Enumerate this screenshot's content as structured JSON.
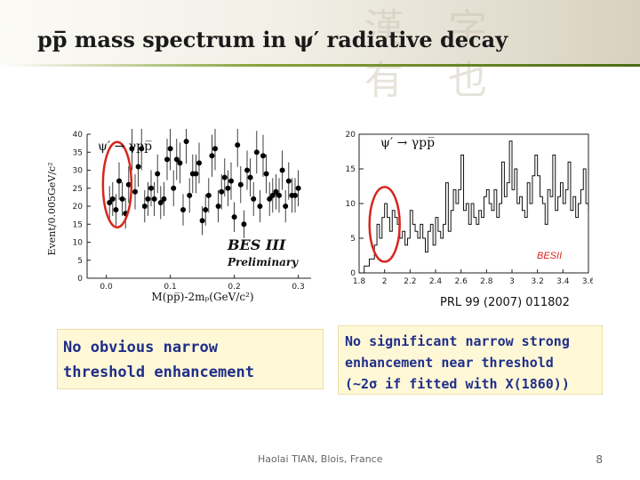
{
  "title": "pp̅ mass spectrum in ψ′ radiative decay",
  "left_plot": {
    "process": "ψ′ → γpp̅",
    "y_label": "Event/0.005GeV/c²",
    "x_label": "M(pp̅)-2mₚ(GeV/c²)",
    "experiment": "BES III",
    "status": "Preliminary",
    "x_ticks": [
      "0.0",
      "0.1",
      "0.2",
      "0.3"
    ],
    "y_ticks": [
      "0",
      "5",
      "10",
      "15",
      "20",
      "25",
      "30",
      "35",
      "40"
    ]
  },
  "right_plot": {
    "process": "ψ′ → γpp̅",
    "experiment": "BESII",
    "x_ticks": [
      "1.8",
      "2",
      "2.2",
      "2.4",
      "2.6",
      "2.8",
      "3",
      "3.2",
      "3.4",
      "3.6"
    ],
    "y_ticks": [
      "0",
      "5",
      "10",
      "15",
      "20"
    ]
  },
  "reference": "PRL 99 (2007) 011802",
  "notes": {
    "left": [
      "No obvious  narrow",
      "threshold enhancement"
    ],
    "right": [
      "No significant narrow strong",
      "enhancement  near threshold",
      "(~2σ if fitted with X(1860))"
    ]
  },
  "footer": "Haolai TIAN, Blois, France",
  "page": "8",
  "colors": {
    "accent": "#5f7d1e",
    "note_text": "#1f2e8a",
    "note_bg": "#fff8d6",
    "circle": "#d7261e"
  },
  "chart_data": [
    {
      "type": "scatter",
      "x": [
        0.005,
        0.01,
        0.015,
        0.02,
        0.025,
        0.03,
        0.035,
        0.04,
        0.045,
        0.05,
        0.055,
        0.06,
        0.065,
        0.07,
        0.075,
        0.08,
        0.085,
        0.09,
        0.095,
        0.1,
        0.105,
        0.11,
        0.115,
        0.12,
        0.125,
        0.13,
        0.135,
        0.14,
        0.145,
        0.15,
        0.155,
        0.16,
        0.165,
        0.17,
        0.175,
        0.18,
        0.185,
        0.19,
        0.195,
        0.2,
        0.205,
        0.21,
        0.215,
        0.22,
        0.225,
        0.23,
        0.235,
        0.24,
        0.245,
        0.25,
        0.255,
        0.26,
        0.265,
        0.27,
        0.275,
        0.28,
        0.285,
        0.29,
        0.295,
        0.3
      ],
      "y": [
        21,
        22,
        19,
        27,
        22,
        18,
        26,
        36,
        24,
        31,
        36,
        20,
        22,
        25,
        22,
        29,
        21,
        22,
        33,
        36,
        25,
        33,
        32,
        19,
        38,
        23,
        29,
        29,
        32,
        16,
        19,
        23,
        34,
        36,
        20,
        24,
        28,
        25,
        27,
        17,
        37,
        26,
        15,
        30,
        28,
        22,
        35,
        20,
        34,
        29,
        22,
        23,
        24,
        23,
        30,
        20,
        27,
        23,
        23,
        25
      ],
      "xlim": [
        -0.03,
        0.32
      ],
      "ylim": [
        0,
        40
      ]
    },
    {
      "type": "line",
      "x": [
        1.8,
        1.82,
        1.84,
        1.86,
        1.88,
        1.9,
        1.92,
        1.94,
        1.96,
        1.98,
        2.0,
        2.02,
        2.04,
        2.06,
        2.08,
        2.1,
        2.12,
        2.14,
        2.16,
        2.18,
        2.2,
        2.22,
        2.24,
        2.26,
        2.28,
        2.3,
        2.32,
        2.34,
        2.36,
        2.38,
        2.4,
        2.42,
        2.44,
        2.46,
        2.48,
        2.5,
        2.52,
        2.54,
        2.56,
        2.58,
        2.6,
        2.62,
        2.64,
        2.66,
        2.68,
        2.7,
        2.72,
        2.74,
        2.76,
        2.78,
        2.8,
        2.82,
        2.84,
        2.86,
        2.88,
        2.9,
        2.92,
        2.94,
        2.96,
        2.98,
        3.0,
        3.02,
        3.04,
        3.06,
        3.08,
        3.1,
        3.12,
        3.14,
        3.16,
        3.18,
        3.2,
        3.22,
        3.24,
        3.26,
        3.28,
        3.3,
        3.32,
        3.34,
        3.36,
        3.38,
        3.4,
        3.42,
        3.44,
        3.46,
        3.48,
        3.5,
        3.52,
        3.54,
        3.56,
        3.58,
        3.6
      ],
      "y": [
        0,
        0,
        1,
        1,
        2,
        2,
        4,
        7,
        5,
        8,
        10,
        8,
        6,
        9,
        8,
        7,
        5,
        6,
        4,
        5,
        9,
        7,
        6,
        5,
        7,
        5,
        3,
        6,
        7,
        4,
        8,
        6,
        5,
        7,
        13,
        6,
        9,
        12,
        10,
        12,
        17,
        9,
        10,
        7,
        10,
        8,
        7,
        9,
        8,
        11,
        12,
        10,
        9,
        12,
        8,
        10,
        16,
        11,
        13,
        19,
        12,
        15,
        10,
        11,
        9,
        8,
        13,
        10,
        14,
        17,
        14,
        11,
        10,
        7,
        12,
        11,
        17,
        9,
        11,
        13,
        10,
        12,
        16,
        9,
        11,
        8,
        10,
        12,
        15,
        10,
        9
      ],
      "xlim": [
        1.8,
        3.6
      ],
      "ylim": [
        0,
        20
      ]
    }
  ]
}
